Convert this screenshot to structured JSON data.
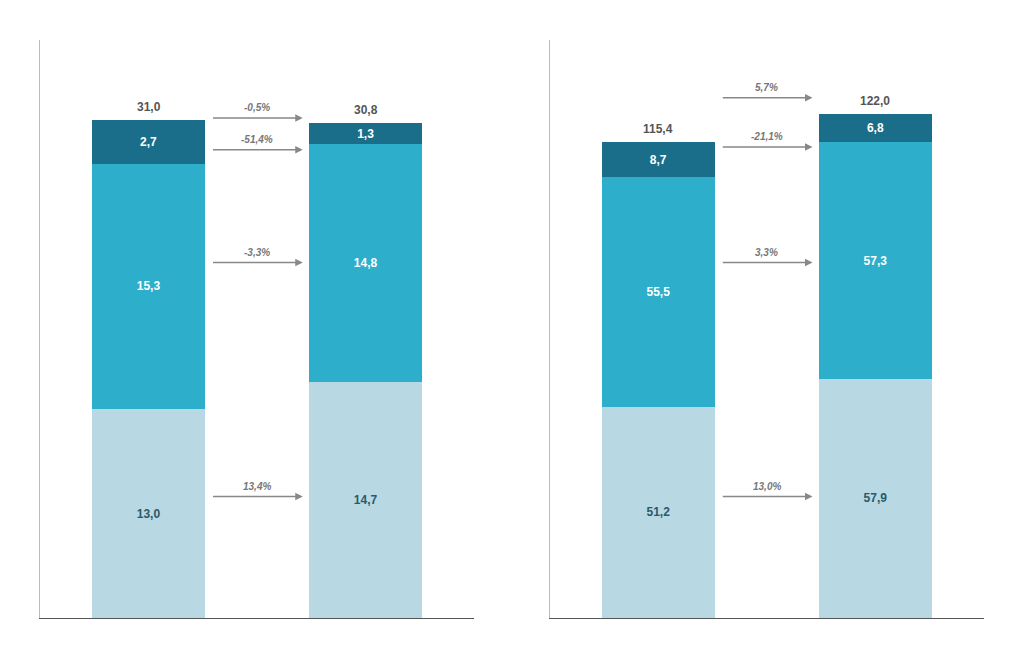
{
  "chart_data": [
    {
      "type": "bar",
      "stacked": true,
      "categories": [
        null,
        null
      ],
      "series": [
        {
          "color": "#b8d8e4",
          "values": [
            13.0,
            14.7
          ],
          "value_labels": [
            "13,0",
            "14,7"
          ]
        },
        {
          "color": "#2daecb",
          "values": [
            15.3,
            14.8
          ],
          "value_labels": [
            "15,3",
            "14,8"
          ]
        },
        {
          "color": "#1a6e8a",
          "values": [
            2.7,
            1.3
          ],
          "value_labels": [
            "2,7",
            "1,3"
          ]
        }
      ],
      "totals": [
        31.0,
        30.8
      ],
      "total_labels": [
        "31,0",
        "30,8"
      ],
      "annotations": [
        "13,4%",
        "-3,3%",
        "-0,5%",
        "-51,4%"
      ],
      "ylim": [
        0,
        36
      ],
      "grid": false,
      "tick_labels": false,
      "data_labels": true
    },
    {
      "type": "bar",
      "stacked": true,
      "categories": [
        null,
        null
      ],
      "series": [
        {
          "color": "#b8d8e4",
          "values": [
            51.2,
            57.9
          ],
          "value_labels": [
            "51,2",
            "57,9"
          ]
        },
        {
          "color": "#2daecb",
          "values": [
            55.5,
            57.3
          ],
          "value_labels": [
            "55,5",
            "57,3"
          ]
        },
        {
          "color": "#1a6e8a",
          "values": [
            8.7,
            6.8
          ],
          "value_labels": [
            "8,7",
            "6,8"
          ]
        }
      ],
      "totals": [
        115.4,
        122.0
      ],
      "total_labels": [
        "115,4",
        "122,0"
      ],
      "annotations": [
        "13,0%",
        "3,3%",
        "-21,1%",
        "5,7%"
      ],
      "ylim": [
        0,
        140
      ],
      "grid": false,
      "tick_labels": false,
      "data_labels": true
    }
  ]
}
